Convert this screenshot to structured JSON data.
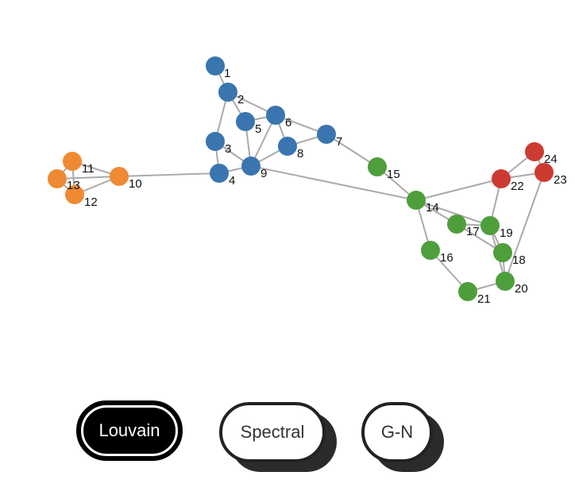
{
  "communities": {
    "blue": "#3a75b0",
    "orange": "#ef8a33",
    "green": "#4f9e3c",
    "red": "#cc3b32"
  },
  "nodes": [
    {
      "id": "1",
      "community": "blue"
    },
    {
      "id": "2",
      "community": "blue"
    },
    {
      "id": "3",
      "community": "blue"
    },
    {
      "id": "4",
      "community": "blue"
    },
    {
      "id": "5",
      "community": "blue"
    },
    {
      "id": "6",
      "community": "blue"
    },
    {
      "id": "7",
      "community": "blue"
    },
    {
      "id": "8",
      "community": "blue"
    },
    {
      "id": "9",
      "community": "blue"
    },
    {
      "id": "10",
      "community": "orange"
    },
    {
      "id": "11",
      "community": "orange"
    },
    {
      "id": "12",
      "community": "orange"
    },
    {
      "id": "13",
      "community": "orange"
    },
    {
      "id": "14",
      "community": "green"
    },
    {
      "id": "15",
      "community": "green"
    },
    {
      "id": "16",
      "community": "green"
    },
    {
      "id": "17",
      "community": "green"
    },
    {
      "id": "18",
      "community": "green"
    },
    {
      "id": "19",
      "community": "green"
    },
    {
      "id": "20",
      "community": "green"
    },
    {
      "id": "21",
      "community": "green"
    },
    {
      "id": "22",
      "community": "red"
    },
    {
      "id": "23",
      "community": "red"
    },
    {
      "id": "24",
      "community": "red"
    }
  ],
  "edges": [
    [
      "1",
      "2"
    ],
    [
      "2",
      "3"
    ],
    [
      "2",
      "5"
    ],
    [
      "2",
      "6"
    ],
    [
      "5",
      "6"
    ],
    [
      "5",
      "9"
    ],
    [
      "6",
      "9"
    ],
    [
      "6",
      "8"
    ],
    [
      "6",
      "7"
    ],
    [
      "8",
      "7"
    ],
    [
      "8",
      "9"
    ],
    [
      "3",
      "4"
    ],
    [
      "3",
      "9"
    ],
    [
      "4",
      "9"
    ],
    [
      "4",
      "10"
    ],
    [
      "9",
      "14"
    ],
    [
      "10",
      "11"
    ],
    [
      "10",
      "12"
    ],
    [
      "10",
      "13"
    ],
    [
      "11",
      "12"
    ],
    [
      "11",
      "13"
    ],
    [
      "12",
      "13"
    ],
    [
      "7",
      "15"
    ],
    [
      "15",
      "14"
    ],
    [
      "14",
      "22"
    ],
    [
      "14",
      "17"
    ],
    [
      "14",
      "19"
    ],
    [
      "14",
      "16"
    ],
    [
      "16",
      "21"
    ],
    [
      "17",
      "19"
    ],
    [
      "17",
      "18"
    ],
    [
      "19",
      "18"
    ],
    [
      "19",
      "20"
    ],
    [
      "18",
      "20"
    ],
    [
      "20",
      "21"
    ],
    [
      "19",
      "22"
    ],
    [
      "22",
      "24"
    ],
    [
      "22",
      "23"
    ],
    [
      "24",
      "23"
    ],
    [
      "23",
      "20"
    ]
  ],
  "buttons": [
    {
      "id": "louvain",
      "label": "Louvain",
      "active": true
    },
    {
      "id": "spectral",
      "label": "Spectral",
      "active": false
    },
    {
      "id": "gn",
      "label": "G-N",
      "active": false
    }
  ]
}
